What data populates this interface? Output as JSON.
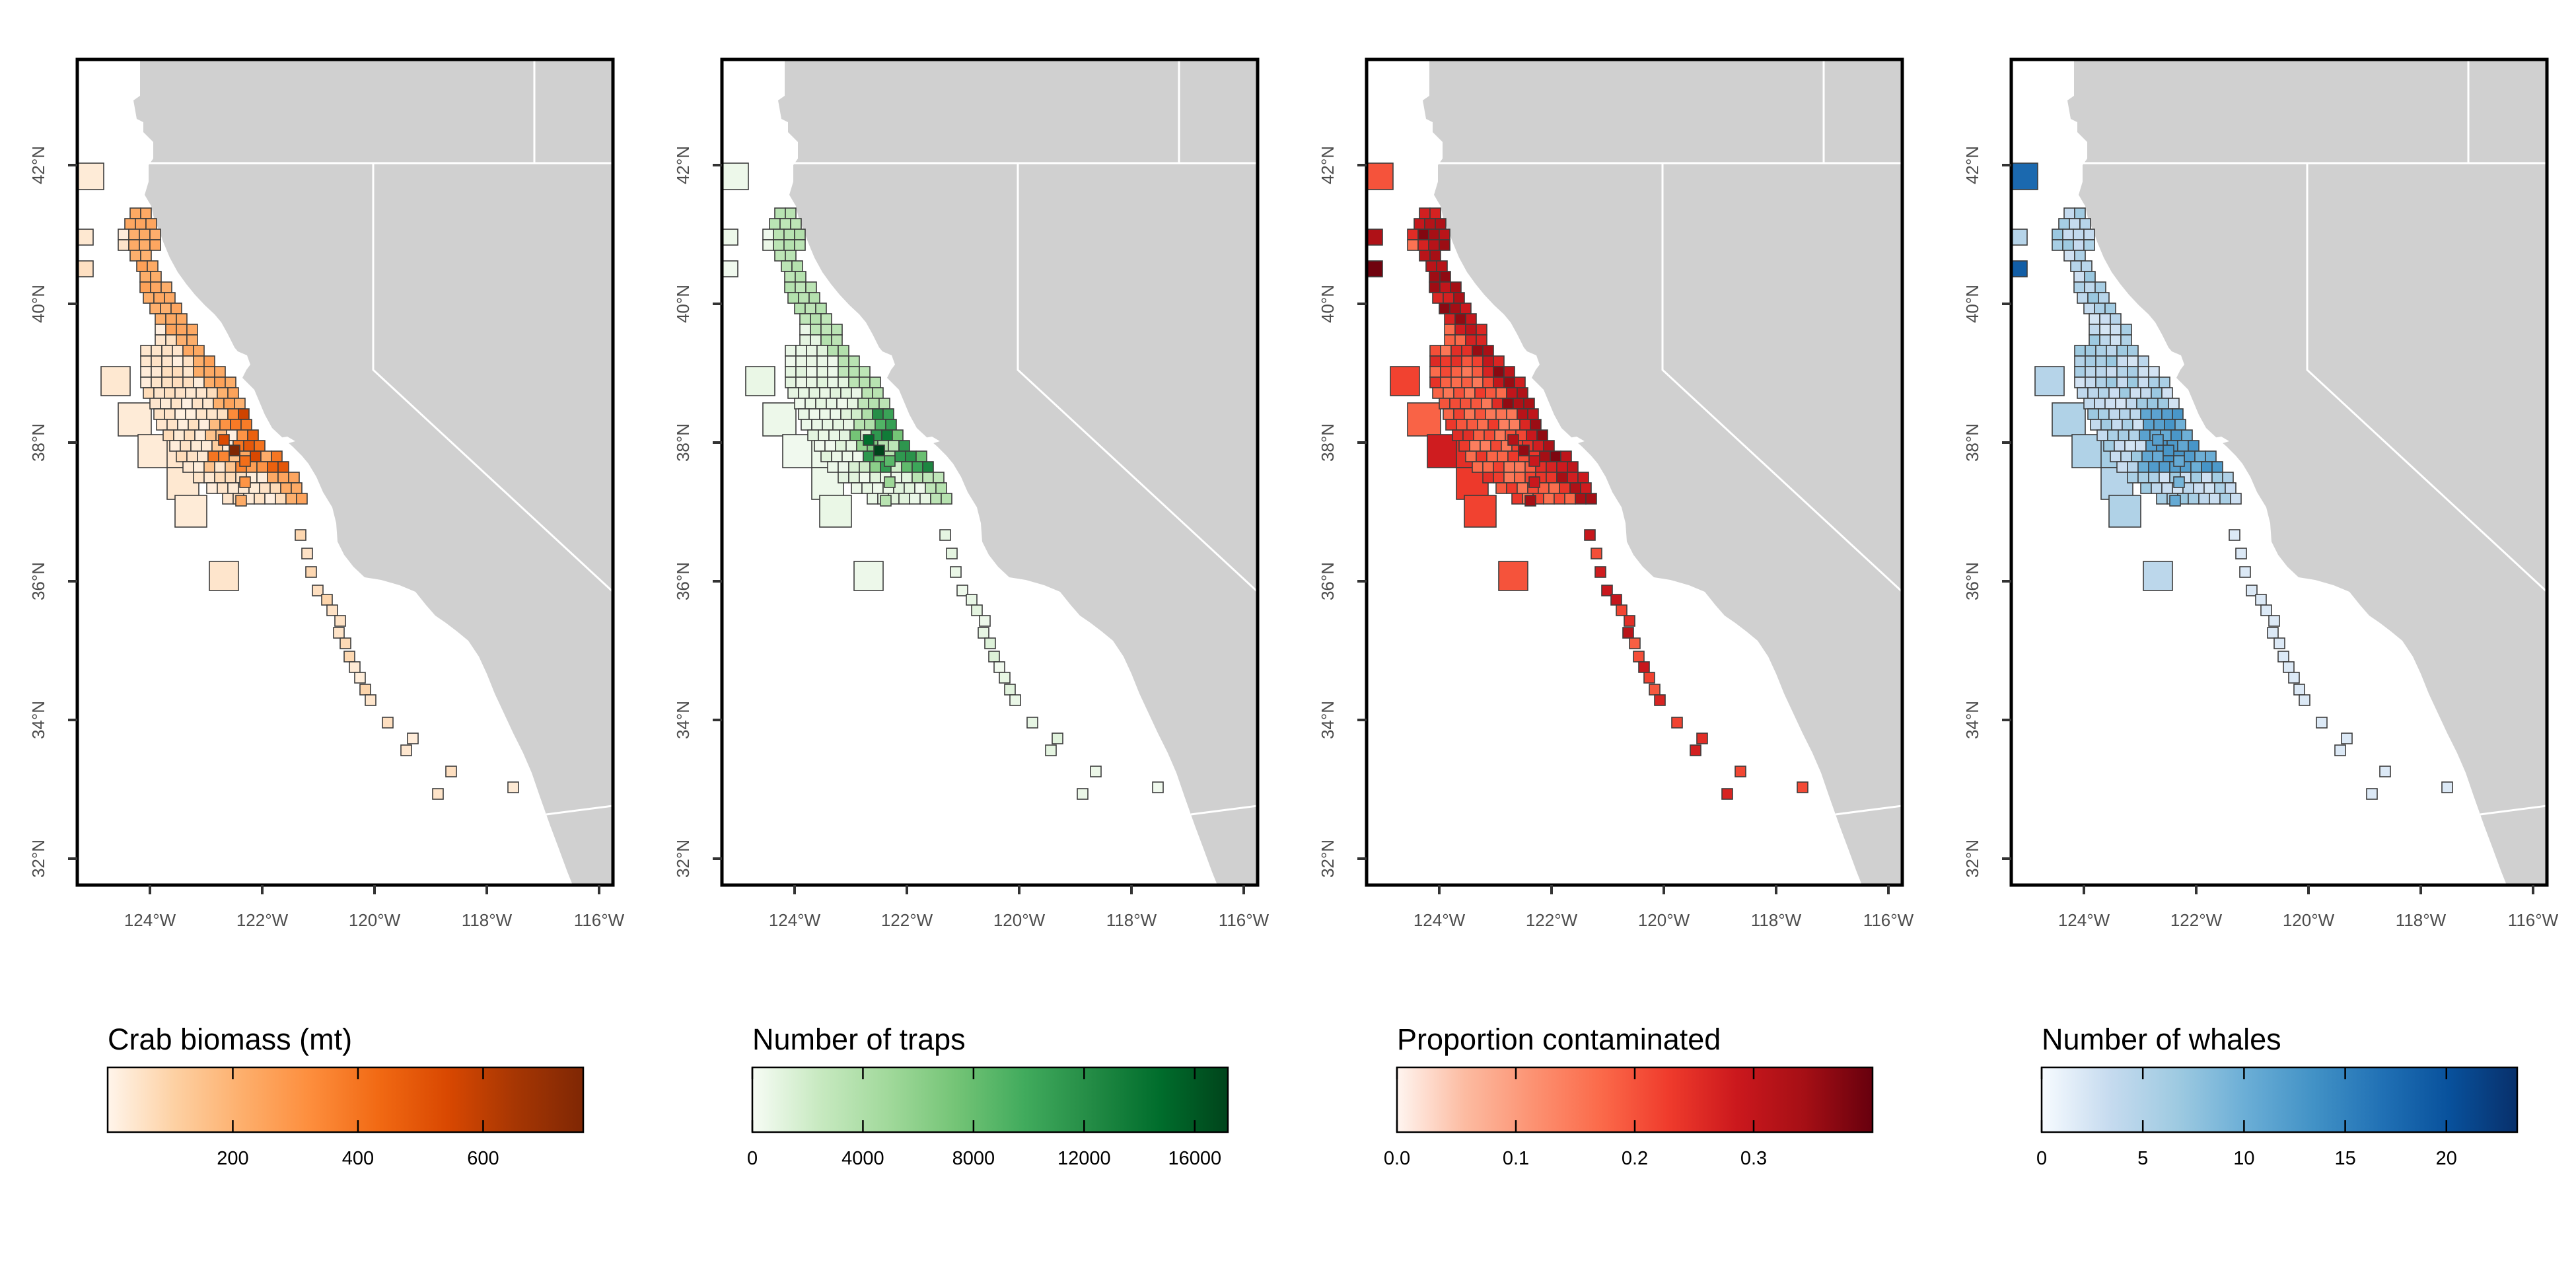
{
  "colors": {
    "land": "#d0d0d0",
    "ocean": "#ffffff",
    "border": "#ffffff",
    "cell_outline": "#3c3c3c",
    "frame": "#000000"
  },
  "map": {
    "lat_ticks": [
      "32°N",
      "34°N",
      "36°N",
      "38°N",
      "40°N",
      "42°N"
    ],
    "lon_ticks": [
      "124°W",
      "122°W",
      "120°W",
      "118°W",
      "116°W"
    ],
    "lat_range": [
      31.5,
      43.5
    ],
    "lon_range": [
      -125.4,
      -115.8
    ]
  },
  "panels": [
    {
      "id": "crab",
      "legend_title": "Crab biomass (mt)",
      "legend_ticks": [
        "200",
        "400",
        "600"
      ],
      "legend_tick_values": [
        200,
        400,
        600
      ],
      "scale_range": [
        0,
        760
      ],
      "palette": [
        "#fff5eb",
        "#fdd0a2",
        "#fdae6b",
        "#fd8d3c",
        "#f16913",
        "#d94801",
        "#a63603",
        "#7f2704"
      ]
    },
    {
      "id": "traps",
      "legend_title": "Number of traps",
      "legend_ticks": [
        "0",
        "4000",
        "8000",
        "12000",
        "16000"
      ],
      "legend_tick_values": [
        0,
        4000,
        8000,
        12000,
        16000
      ],
      "scale_range": [
        0,
        17200
      ],
      "palette": [
        "#f7fcf5",
        "#c7e9c0",
        "#a1d99b",
        "#74c476",
        "#41ab5d",
        "#238b45",
        "#006d2c",
        "#00441b"
      ]
    },
    {
      "id": "contam",
      "legend_title": "Proportion contaminated",
      "legend_ticks": [
        "0.0",
        "0.1",
        "0.2",
        "0.3"
      ],
      "legend_tick_values": [
        0.0,
        0.1,
        0.2,
        0.3
      ],
      "scale_range": [
        0,
        0.4
      ],
      "palette": [
        "#fff5f0",
        "#fcbba1",
        "#fc9272",
        "#fb6a4a",
        "#ef3b2c",
        "#cb181d",
        "#a50f15",
        "#67000d"
      ]
    },
    {
      "id": "whales",
      "legend_title": "Number of whales",
      "legend_ticks": [
        "0",
        "5",
        "10",
        "15",
        "20"
      ],
      "legend_tick_values": [
        0,
        5,
        10,
        15,
        20
      ],
      "scale_range": [
        0,
        23.5
      ],
      "palette": [
        "#f7fbff",
        "#c6dbef",
        "#9ecae1",
        "#6baed6",
        "#4292c6",
        "#2171b5",
        "#08519c",
        "#08306b"
      ]
    }
  ]
}
